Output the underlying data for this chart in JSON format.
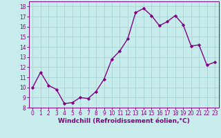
{
  "x": [
    0,
    1,
    2,
    3,
    4,
    5,
    6,
    7,
    8,
    9,
    10,
    11,
    12,
    13,
    14,
    15,
    16,
    17,
    18,
    19,
    20,
    21,
    22,
    23
  ],
  "y": [
    10.0,
    11.5,
    10.2,
    9.8,
    8.4,
    8.5,
    9.0,
    8.9,
    9.6,
    10.8,
    12.8,
    13.6,
    14.8,
    17.4,
    17.8,
    17.1,
    16.1,
    16.5,
    17.1,
    16.2,
    14.1,
    14.2,
    12.2,
    12.5
  ],
  "line_color": "#800080",
  "marker": "D",
  "marker_size": 2.2,
  "bg_color": "#c8ecec",
  "grid_color": "#aad8d8",
  "xlabel": "Windchill (Refroidissement éolien,°C)",
  "xlabel_color": "#800080",
  "ylim": [
    8,
    18.5
  ],
  "xlim": [
    -0.5,
    23.5
  ],
  "yticks": [
    8,
    9,
    10,
    11,
    12,
    13,
    14,
    15,
    16,
    17,
    18
  ],
  "xticks": [
    0,
    1,
    2,
    3,
    4,
    5,
    6,
    7,
    8,
    9,
    10,
    11,
    12,
    13,
    14,
    15,
    16,
    17,
    18,
    19,
    20,
    21,
    22,
    23
  ],
  "tick_color": "#800080",
  "tick_fontsize": 5.5,
  "xlabel_fontsize": 6.5,
  "linewidth": 1.0
}
